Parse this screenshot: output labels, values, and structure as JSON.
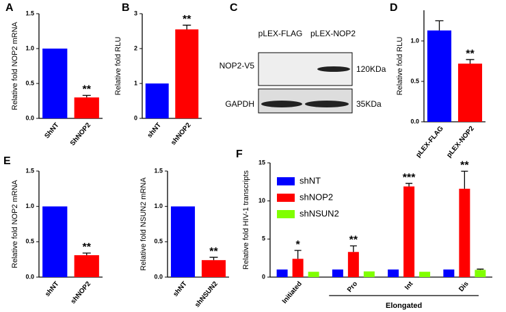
{
  "chart_data": [
    {
      "type": "bar",
      "panel": "A",
      "y_label": "Relative fold NOP2 mRNA",
      "categories": [
        "ShNT",
        "ShNOP2"
      ],
      "values": [
        1.0,
        0.3
      ],
      "errors": [
        null,
        0.03
      ],
      "colors": [
        "#0000ff",
        "#ff0000"
      ],
      "significance": [
        null,
        "**"
      ],
      "ylim": [
        0,
        1.5
      ],
      "yticks": [
        {
          "value": 0,
          "label": "0.0"
        },
        0.5,
        {
          "value": 1,
          "label": "1.0"
        },
        1.5
      ]
    },
    {
      "type": "bar",
      "panel": "B",
      "y_label": "Relative fold  RLU",
      "categories": [
        "shNT",
        "shNOP2"
      ],
      "values": [
        1.0,
        2.55
      ],
      "errors": [
        null,
        0.12
      ],
      "colors": [
        "#0000ff",
        "#ff0000"
      ],
      "significance": [
        null,
        "**"
      ],
      "ylim": [
        0,
        3
      ],
      "yticks": [
        0,
        1,
        2,
        3
      ]
    },
    {
      "type": "bar",
      "panel": "D",
      "y_label": "Relative fold RLU",
      "categories": [
        "pLEX-FLAG",
        "pLEX-NOP2"
      ],
      "values": [
        1.13,
        0.72
      ],
      "errors": [
        0.12,
        0.05
      ],
      "colors": [
        "#0000ff",
        "#ff0000"
      ],
      "significance": [
        null,
        "**"
      ],
      "ylim": [
        0,
        1.38
      ],
      "yticks": [
        {
          "value": 0,
          "label": "0.0"
        },
        0.5,
        {
          "value": 1,
          "label": "1.0"
        }
      ]
    },
    {
      "type": "bar",
      "panel": "E",
      "y_label": "Relative fold  NOP2 mRNA",
      "categories": [
        "shNT",
        "shNOP2"
      ],
      "values": [
        1.0,
        0.31
      ],
      "errors": [
        null,
        0.03
      ],
      "colors": [
        "#0000ff",
        "#ff0000"
      ],
      "significance": [
        null,
        "**"
      ],
      "ylim": [
        0,
        1.5
      ],
      "yticks": [
        {
          "value": 0,
          "label": "0.0"
        },
        0.5,
        {
          "value": 1,
          "label": "1.0"
        },
        1.5
      ]
    },
    {
      "type": "bar",
      "y_label": "Relative fold NSUN2 mRNA",
      "categories": [
        "shNT",
        "shNSUN2"
      ],
      "values": [
        1.0,
        0.24
      ],
      "errors": [
        null,
        0.04
      ],
      "colors": [
        "#0000ff",
        "#ff0000"
      ],
      "significance": [
        null,
        "**"
      ],
      "ylim": [
        0,
        1.5
      ],
      "yticks": [
        {
          "value": 0,
          "label": "0.0"
        },
        0.5,
        {
          "value": 1,
          "label": "1.0"
        },
        1.5
      ]
    },
    {
      "type": "grouped_bar",
      "panel": "F",
      "y_label": "Relative fold  HIV-1 transcripts",
      "categories": [
        "Initiated",
        "Pro",
        "Int",
        "Dis"
      ],
      "x_group": "Elongated",
      "series": [
        {
          "name": "shNT",
          "color": "#0000ff",
          "values": [
            1,
            1,
            1,
            1
          ],
          "errors": [
            null,
            null,
            null,
            null
          ]
        },
        {
          "name": "shNOP2",
          "color": "#ff0000",
          "values": [
            2.4,
            3.3,
            11.9,
            11.6
          ],
          "errors": [
            1.1,
            0.8,
            0.4,
            2.3
          ]
        },
        {
          "name": "shNSUN2",
          "color": "#80ff00",
          "values": [
            0.7,
            0.75,
            0.7,
            0.95
          ],
          "errors": [
            null,
            null,
            null,
            0.1
          ]
        }
      ],
      "significance": [
        "*",
        "**",
        "***",
        "**"
      ],
      "ylim": [
        0,
        15
      ],
      "yticks": [
        0,
        5,
        10,
        15
      ]
    }
  ],
  "blot": {
    "panel": "C",
    "lanes": [
      "pLEX-FLAG",
      "pLEX-NOP2"
    ],
    "rows": [
      "NOP2-V5",
      "GAPDH"
    ],
    "sizes": [
      "120KDa",
      "35KDa"
    ]
  }
}
